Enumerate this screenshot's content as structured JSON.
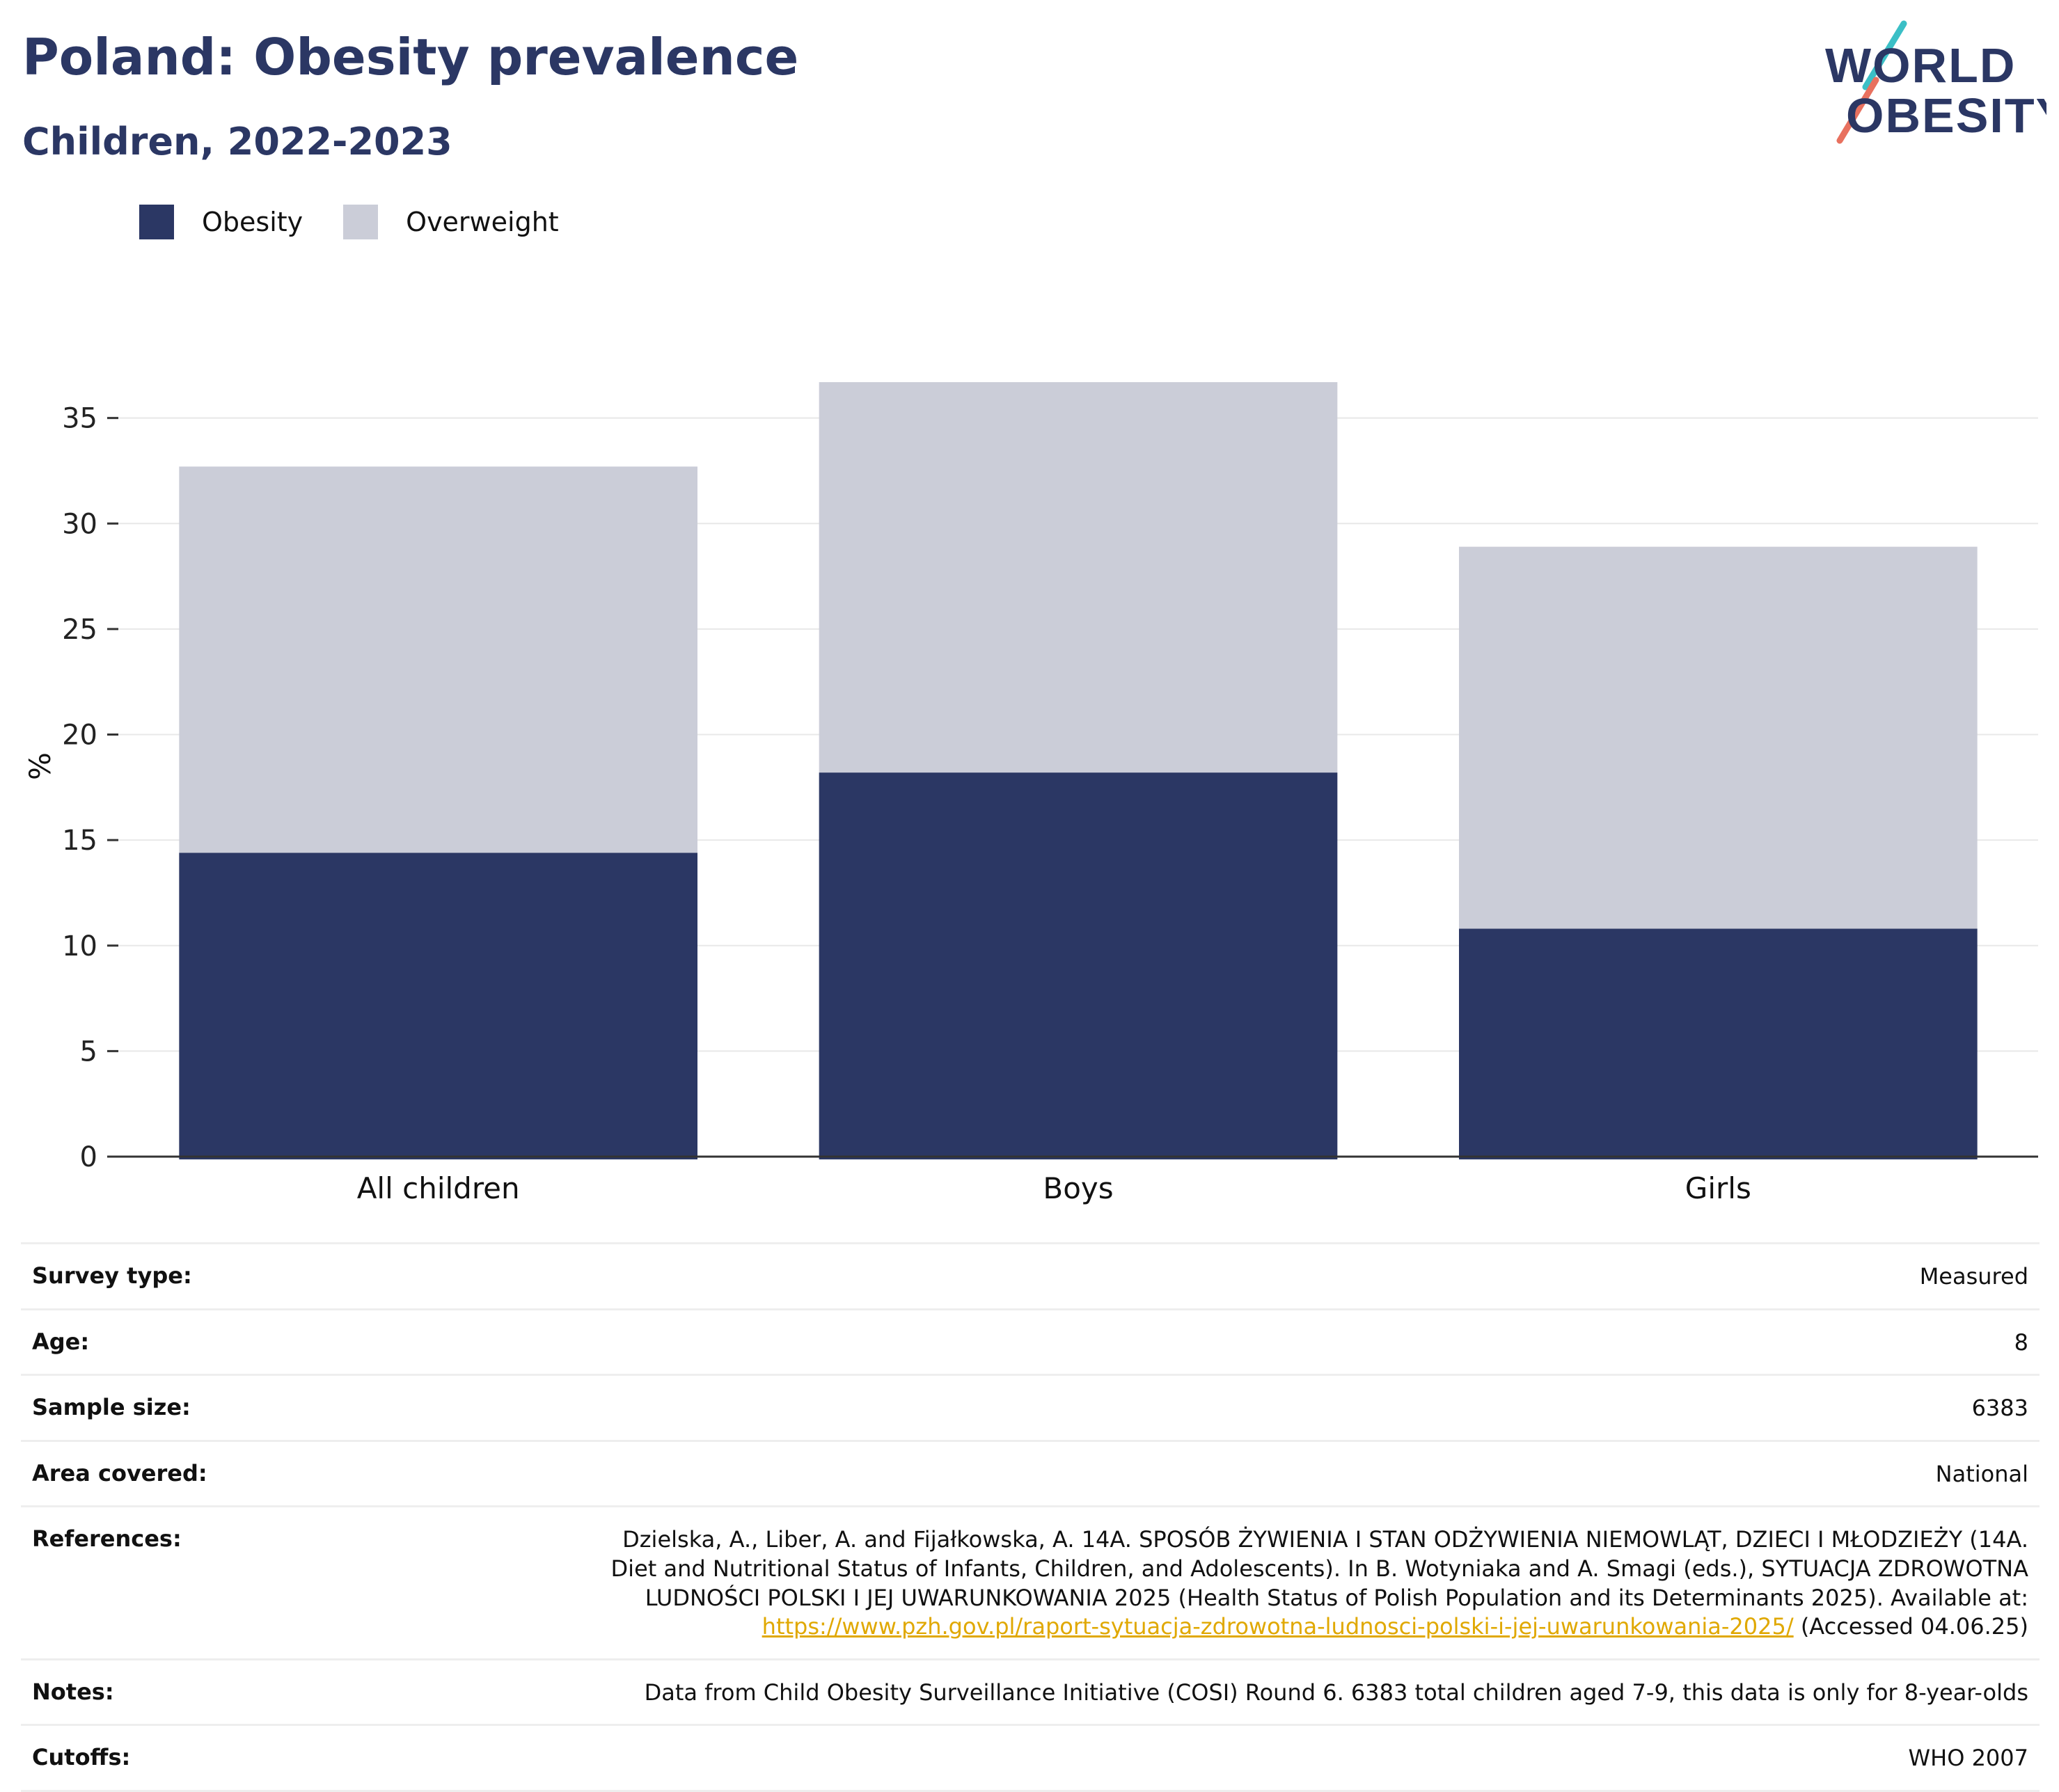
{
  "header": {
    "title": "Poland: Obesity prevalence",
    "subtitle": "Children, 2022-2023",
    "logo": {
      "line1": "WORLD",
      "line2": "OBESITY"
    }
  },
  "colors": {
    "obesity": "#2b3764",
    "overweight": "#cbcdd8",
    "title": "#2b3764",
    "link": "#e0a800",
    "logo_teal": "#3bbfc6",
    "logo_coral": "#e8715f"
  },
  "legend": [
    {
      "label": "Obesity",
      "color": "#2b3764"
    },
    {
      "label": "Overweight",
      "color": "#cbcdd8"
    }
  ],
  "chart_data": {
    "type": "bar",
    "stacked": true,
    "categories": [
      "All children",
      "Boys",
      "Girls"
    ],
    "series": [
      {
        "name": "Obesity",
        "values": [
          14.4,
          18.2,
          10.8
        ]
      },
      {
        "name": "Overweight",
        "values": [
          18.3,
          18.5,
          18.1
        ]
      }
    ],
    "xlabel": "",
    "ylabel": "%",
    "ylim": [
      0,
      37
    ],
    "yticks": [
      0,
      5,
      10,
      15,
      20,
      25,
      30,
      35
    ],
    "grid": true,
    "legend_position": "top-left"
  },
  "info": {
    "survey_type": {
      "label": "Survey type:",
      "value": "Measured"
    },
    "age": {
      "label": "Age:",
      "value": "8"
    },
    "sample_size": {
      "label": "Sample size:",
      "value": "6383"
    },
    "area": {
      "label": "Area covered:",
      "value": "National"
    },
    "references": {
      "label": "References:",
      "text": "Dzielska, A., Liber, A. and Fijałkowska, A. 14A. SPOSÓB ŻYWIENIA I STAN ODŻYWIENIA NIEMOWLĄT, DZIECI I MŁODZIEŻY (14A. Diet and Nutritional Status of Infants, Children, and Adolescents). In B. Wotyniaka and A. Smagi (eds.), SYTUACJA ZDROWOTNA LUDNOŚCI POLSKI I JEJ UWARUNKOWANIA 2025 (Health Status of Polish Population and its Determinants 2025). Available at:",
      "link": "https://www.pzh.gov.pl/raport-sytuacja-zdrowotna-ludnosci-polski-i-jej-uwarunkowania-2025/",
      "accessed": "(Accessed 04.06.25)"
    },
    "notes": {
      "label": "Notes:",
      "value": "Data from Child Obesity Surveillance Initiative (COSI) Round 6. 6383 total children aged 7-9, this data is only for 8-year-olds"
    },
    "cutoffs": {
      "label": "Cutoffs:",
      "value": "WHO 2007"
    }
  }
}
